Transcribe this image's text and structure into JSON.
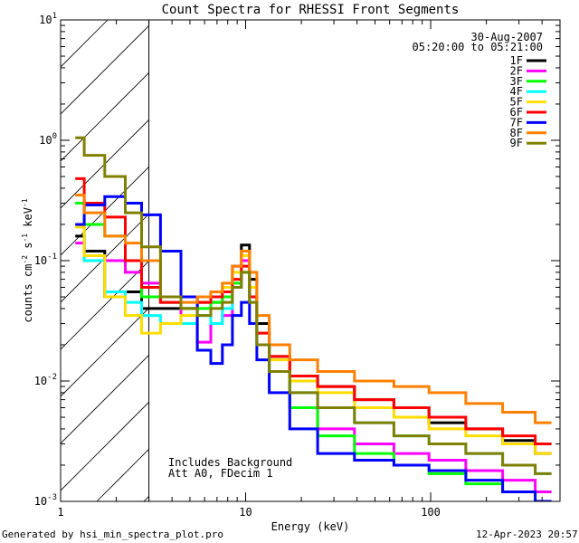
{
  "chart_data": {
    "type": "line",
    "title": "Count Spectra for RHESSI Front Segments",
    "xlabel": "Energy (keV)",
    "ylabel": "counts cm^-2 s^-1 keV^-1",
    "ylabel_parts": {
      "base": "counts cm",
      "e1": "-2",
      "s": " s",
      "e2": "-1",
      "kev": " keV",
      "e3": "-1"
    },
    "xscale": "log",
    "yscale": "log",
    "xlim": [
      1,
      500
    ],
    "ylim": [
      0.001,
      10
    ],
    "x_ticks": [
      {
        "value": 1,
        "label": "1"
      },
      {
        "value": 10,
        "label": "10"
      },
      {
        "value": 100,
        "label": "100"
      }
    ],
    "y_ticks": [
      {
        "value": 0.001,
        "base": "10",
        "exp": "-3"
      },
      {
        "value": 0.01,
        "base": "10",
        "exp": "-2"
      },
      {
        "value": 0.1,
        "base": "10",
        "exp": "-1"
      },
      {
        "value": 1,
        "base": "10",
        "exp": "0"
      },
      {
        "value": 10,
        "base": "10",
        "exp": "1"
      }
    ],
    "excluded_region": {
      "from": 1,
      "to": 3,
      "style": "hatched"
    },
    "date": "30-Aug-2007",
    "time_range": "05:20:00 to 05:21:00",
    "annotations": [
      "Includes Background",
      "Att A0, FDecim 1"
    ],
    "legend_position": "top-right",
    "series": [
      {
        "name": "1F",
        "color": "#000000",
        "x": [
          1.2,
          1.5,
          2,
          2.5,
          3,
          4,
          5,
          6,
          7,
          8,
          9,
          10,
          11,
          12,
          15,
          20,
          30,
          50,
          80,
          120,
          200,
          300,
          450
        ],
        "y": [
          0.16,
          0.12,
          0.05,
          0.055,
          0.04,
          0.04,
          0.04,
          0.045,
          0.045,
          0.05,
          0.09,
          0.135,
          0.07,
          0.03,
          0.016,
          0.011,
          0.009,
          0.007,
          0.006,
          0.0045,
          0.004,
          0.0032,
          0.0025
        ]
      },
      {
        "name": "2F",
        "color": "#ff00ff",
        "x": [
          1.2,
          1.5,
          2,
          2.5,
          3,
          4,
          5,
          6,
          7,
          8,
          9,
          10,
          11,
          12,
          15,
          20,
          30,
          50,
          80,
          120,
          200,
          300,
          450
        ],
        "y": [
          0.14,
          0.11,
          0.1,
          0.08,
          0.065,
          0.045,
          0.03,
          0.021,
          0.03,
          0.035,
          0.06,
          0.1,
          0.05,
          0.02,
          0.012,
          0.006,
          0.004,
          0.003,
          0.0025,
          0.0022,
          0.0018,
          0.0015,
          0.0012
        ]
      },
      {
        "name": "3F",
        "color": "#00ff00",
        "x": [
          1.2,
          1.5,
          2,
          2.5,
          3,
          4,
          5,
          6,
          7,
          8,
          9,
          10,
          11,
          12,
          15,
          20,
          30,
          50,
          80,
          120,
          200,
          300,
          450
        ],
        "y": [
          0.3,
          0.2,
          0.16,
          0.1,
          0.05,
          0.045,
          0.04,
          0.04,
          0.045,
          0.05,
          0.065,
          0.08,
          0.05,
          0.02,
          0.012,
          0.006,
          0.0035,
          0.0025,
          0.002,
          0.0017,
          0.0014,
          0.0012,
          0.001
        ]
      },
      {
        "name": "4F",
        "color": "#00ffff",
        "x": [
          1.2,
          1.5,
          2,
          2.5,
          3,
          4,
          5,
          6,
          7,
          8,
          9,
          10,
          11,
          12,
          15,
          20,
          30,
          50,
          80,
          120,
          200,
          300,
          450
        ],
        "y": [
          0.2,
          0.1,
          0.055,
          0.045,
          0.035,
          0.03,
          0.03,
          0.035,
          0.03,
          0.04,
          0.06,
          0.09,
          0.045,
          0.02,
          0.012,
          0.008,
          0.006,
          0.0045,
          0.0035,
          0.003,
          0.0025,
          0.002,
          0.0017
        ]
      },
      {
        "name": "5F",
        "color": "#ffdd00",
        "x": [
          1.2,
          1.5,
          2,
          2.5,
          3,
          4,
          5,
          6,
          7,
          8,
          9,
          10,
          11,
          12,
          15,
          20,
          30,
          50,
          80,
          120,
          200,
          300,
          450
        ],
        "y": [
          0.19,
          0.11,
          0.05,
          0.035,
          0.025,
          0.03,
          0.035,
          0.045,
          0.05,
          0.06,
          0.08,
          0.11,
          0.06,
          0.025,
          0.015,
          0.01,
          0.008,
          0.006,
          0.005,
          0.004,
          0.0035,
          0.003,
          0.0025
        ]
      },
      {
        "name": "6F",
        "color": "#ff0000",
        "x": [
          1.2,
          1.5,
          2,
          2.5,
          3,
          4,
          5,
          6,
          7,
          8,
          9,
          10,
          11,
          12,
          15,
          20,
          30,
          50,
          80,
          120,
          200,
          300,
          450
        ],
        "y": [
          0.48,
          0.3,
          0.23,
          0.1,
          0.06,
          0.045,
          0.05,
          0.045,
          0.05,
          0.055,
          0.07,
          0.09,
          0.05,
          0.025,
          0.016,
          0.011,
          0.009,
          0.007,
          0.006,
          0.005,
          0.004,
          0.0035,
          0.003
        ]
      },
      {
        "name": "7F",
        "color": "#0000ff",
        "x": [
          1.2,
          1.5,
          2,
          2.5,
          3,
          4,
          5,
          6,
          7,
          8,
          9,
          10,
          11,
          12,
          15,
          20,
          30,
          50,
          80,
          120,
          200,
          300,
          450
        ],
        "y": [
          0.2,
          0.29,
          0.34,
          0.3,
          0.24,
          0.12,
          0.05,
          0.018,
          0.014,
          0.02,
          0.035,
          0.045,
          0.03,
          0.015,
          0.008,
          0.004,
          0.0025,
          0.0022,
          0.002,
          0.0018,
          0.0015,
          0.0012,
          0.001
        ]
      },
      {
        "name": "8F",
        "color": "#ff8000",
        "x": [
          1.2,
          1.5,
          2,
          2.5,
          3,
          4,
          5,
          6,
          7,
          8,
          9,
          10,
          11,
          12,
          15,
          20,
          30,
          50,
          80,
          120,
          200,
          300,
          450
        ],
        "y": [
          0.35,
          0.25,
          0.16,
          0.14,
          0.1,
          0.05,
          0.045,
          0.05,
          0.055,
          0.065,
          0.09,
          0.12,
          0.08,
          0.035,
          0.02,
          0.015,
          0.012,
          0.01,
          0.009,
          0.008,
          0.0065,
          0.0055,
          0.0045
        ]
      },
      {
        "name": "9F",
        "color": "#808000",
        "x": [
          1.2,
          1.5,
          2,
          2.5,
          3,
          4,
          5,
          6,
          7,
          8,
          9,
          10,
          11,
          12,
          15,
          20,
          30,
          50,
          80,
          120,
          200,
          300,
          450
        ],
        "y": [
          1.05,
          0.75,
          0.5,
          0.25,
          0.13,
          0.05,
          0.04,
          0.035,
          0.04,
          0.045,
          0.06,
          0.08,
          0.045,
          0.02,
          0.012,
          0.008,
          0.006,
          0.0045,
          0.0035,
          0.003,
          0.0025,
          0.002,
          0.0017
        ]
      }
    ]
  },
  "footer": {
    "generated_by": "Generated by hsi_min_spectra_plot.pro",
    "timestamp": "12-Apr-2023 20:57"
  }
}
